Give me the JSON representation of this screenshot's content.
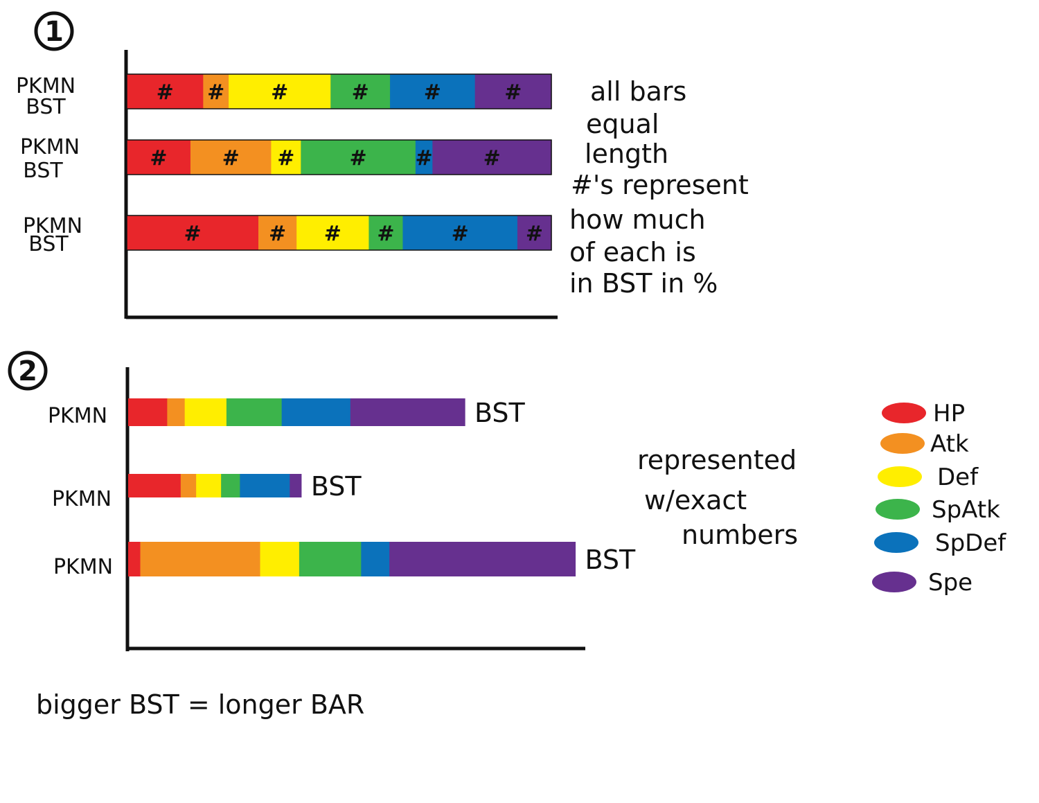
{
  "colors": {
    "HP": "#e8262b",
    "Atk": "#f39021",
    "Def": "#ffee00",
    "SpAtk": "#3cb44b",
    "SpDef": "#0b72bb",
    "Spe": "#66308f",
    "ink": "#111111"
  },
  "legend": {
    "items": [
      {
        "key": "HP",
        "label": "HP"
      },
      {
        "key": "Atk",
        "label": "Atk"
      },
      {
        "key": "Def",
        "label": "Def"
      },
      {
        "key": "SpAtk",
        "label": "SpAtk"
      },
      {
        "key": "SpDef",
        "label": "SpDef"
      },
      {
        "key": "Spe",
        "label": "Spe"
      }
    ]
  },
  "chart_data": [
    {
      "type": "bar",
      "number": "1",
      "stacked": true,
      "normalized": true,
      "note_lines": [
        "all bars",
        "equal",
        "length",
        "#'s represent",
        "how much",
        "of each is",
        "in BST in %"
      ],
      "series_keys": [
        "HP",
        "Atk",
        "Def",
        "SpAtk",
        "SpDef",
        "Spe"
      ],
      "segment_mark": "#",
      "bars": [
        {
          "label_lines": [
            "PKMN",
            "BST"
          ],
          "values": [
            18,
            6,
            24,
            14,
            20,
            18
          ]
        },
        {
          "label_lines": [
            "PKMN",
            "BST"
          ],
          "values": [
            15,
            19,
            7,
            27,
            4,
            28
          ]
        },
        {
          "label_lines": [
            "PKMN",
            "BST"
          ],
          "values": [
            31,
            9,
            17,
            8,
            27,
            8
          ]
        }
      ]
    },
    {
      "type": "bar",
      "number": "2",
      "stacked": true,
      "normalized": false,
      "note_lines": [
        "represented",
        "w/exact",
        "numbers"
      ],
      "footer": "bigger BST = longer BAR",
      "series_keys": [
        "HP",
        "Atk",
        "Def",
        "SpAtk",
        "SpDef",
        "Spe"
      ],
      "xlim": [
        0,
        680
      ],
      "bars": [
        {
          "label": "PKMN",
          "total_label": "BST",
          "values": [
            58,
            26,
            62,
            82,
            102,
            170
          ]
        },
        {
          "label": "PKMN",
          "total_label": "BST",
          "values": [
            78,
            23,
            37,
            28,
            74,
            17
          ]
        },
        {
          "label": "PKMN",
          "total_label": "BST",
          "values": [
            18,
            178,
            58,
            92,
            42,
            276
          ]
        }
      ]
    }
  ]
}
